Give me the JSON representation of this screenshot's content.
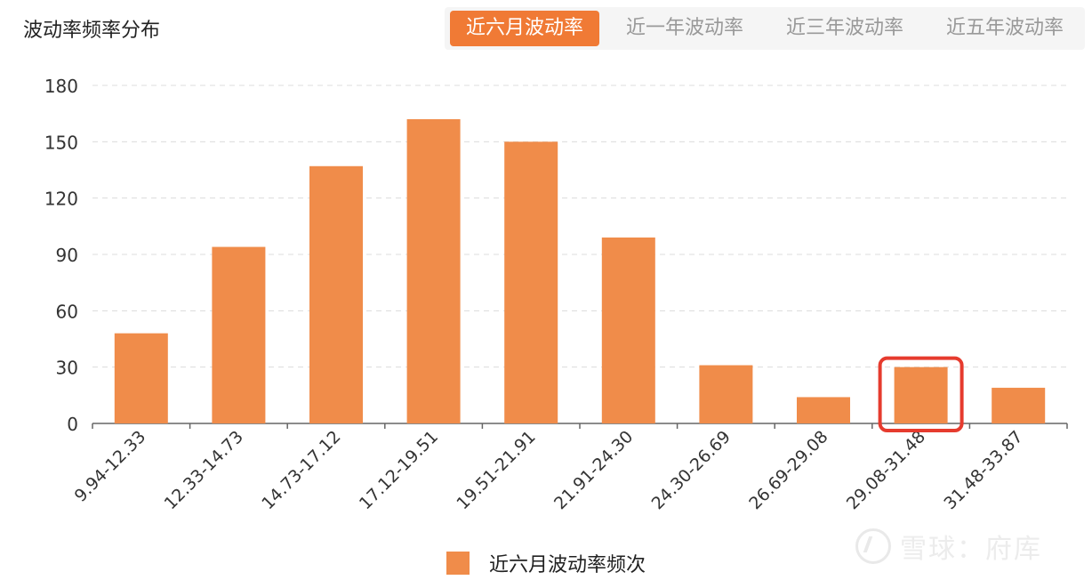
{
  "header": {
    "title": "波动率频率分布",
    "tabs": [
      {
        "label": "近六月波动率",
        "active": true
      },
      {
        "label": "近一年波动率",
        "active": false
      },
      {
        "label": "近三年波动率",
        "active": false
      },
      {
        "label": "近五年波动率",
        "active": false
      }
    ]
  },
  "colors": {
    "bar": "#f08c4a",
    "tab_active_bg": "#f07a35",
    "highlight_box": "#e63b2e"
  },
  "watermark": {
    "text": "雪球：府库"
  },
  "chart_data": {
    "type": "bar",
    "categories": [
      "9.94-12.33",
      "12.33-14.73",
      "14.73-17.12",
      "17.12-19.51",
      "19.51-21.91",
      "21.91-24.30",
      "24.30-26.69",
      "26.69-29.08",
      "29.08-31.48",
      "31.48-33.87"
    ],
    "series": [
      {
        "name": "近六月波动率频次",
        "values": [
          48,
          94,
          137,
          162,
          150,
          99,
          31,
          14,
          30,
          19
        ]
      }
    ],
    "ylim": [
      0,
      180
    ],
    "yticks": [
      0,
      30,
      60,
      90,
      120,
      150,
      180
    ],
    "grid": true,
    "legend_position": "bottom-center",
    "highlighted_category": "29.08-31.48"
  }
}
